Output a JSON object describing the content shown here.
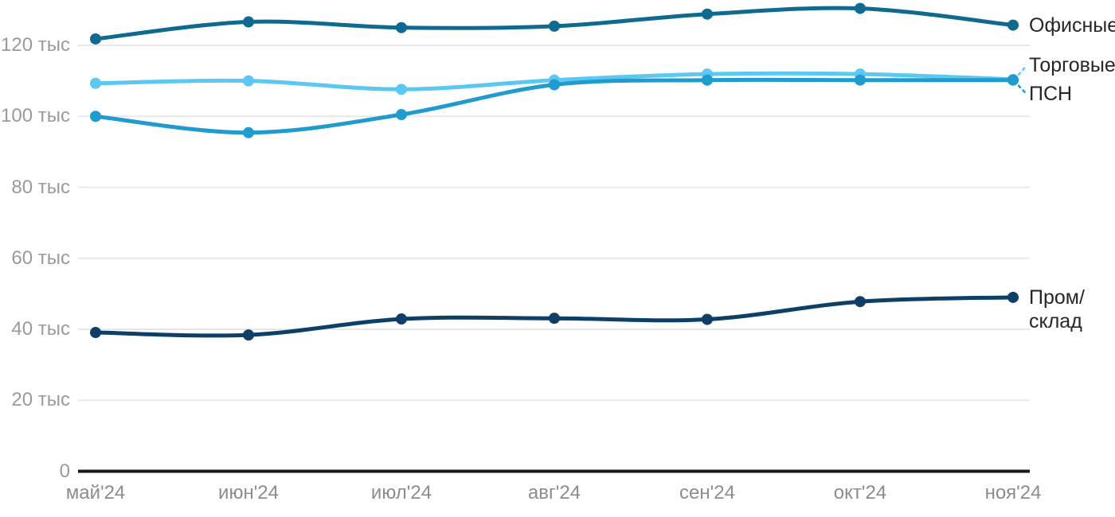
{
  "chart_data": {
    "type": "line",
    "title": "",
    "unit": "тыс",
    "x_categories": [
      "май'24",
      "июн'24",
      "июл'24",
      "авг'24",
      "сен'24",
      "окт'24",
      "ноя'24"
    ],
    "y_ticks": [
      {
        "value": 0,
        "label": "0"
      },
      {
        "value": 20,
        "label": "20 тыс"
      },
      {
        "value": 40,
        "label": "40 тыс"
      },
      {
        "value": 60,
        "label": "60 тыс"
      },
      {
        "value": 80,
        "label": "80 тыс"
      },
      {
        "value": 100,
        "label": "100 тыс"
      },
      {
        "value": 120,
        "label": "120 тыс"
      }
    ],
    "ylim": [
      0,
      135
    ],
    "grid": "horizontal",
    "legend_position": "right-of-line-end",
    "series": [
      {
        "name": "Офисные",
        "label_lines": [
          "Офисные"
        ],
        "color": "#0e6a8e",
        "values": [
          121.8,
          126.6,
          125.0,
          125.4,
          128.8,
          130.4,
          125.7
        ]
      },
      {
        "name": "Торговые",
        "label_lines": [
          "Торговые"
        ],
        "color": "#5ac8f2",
        "values": [
          109.3,
          110.0,
          107.6,
          110.2,
          111.9,
          111.9,
          110.4
        ]
      },
      {
        "name": "ПСН",
        "label_lines": [
          "ПСН"
        ],
        "color": "#1f9ccf",
        "values": [
          100.0,
          95.4,
          100.5,
          108.9,
          110.2,
          110.2,
          110.2
        ]
      },
      {
        "name": "Пром/склад",
        "label_lines": [
          "Пром/",
          "склад"
        ],
        "color": "#0e3f66",
        "values": [
          39.1,
          38.4,
          42.9,
          43.1,
          42.8,
          47.8,
          49.0
        ]
      }
    ],
    "colors": {
      "grid_line": "#e8e8e8",
      "axis_line": "#1a1a1a",
      "y_tick_text": "#9a9a9a",
      "x_tick_text": "#8c8c8c",
      "series_label_text": "#262626",
      "background": "#ffffff"
    }
  }
}
